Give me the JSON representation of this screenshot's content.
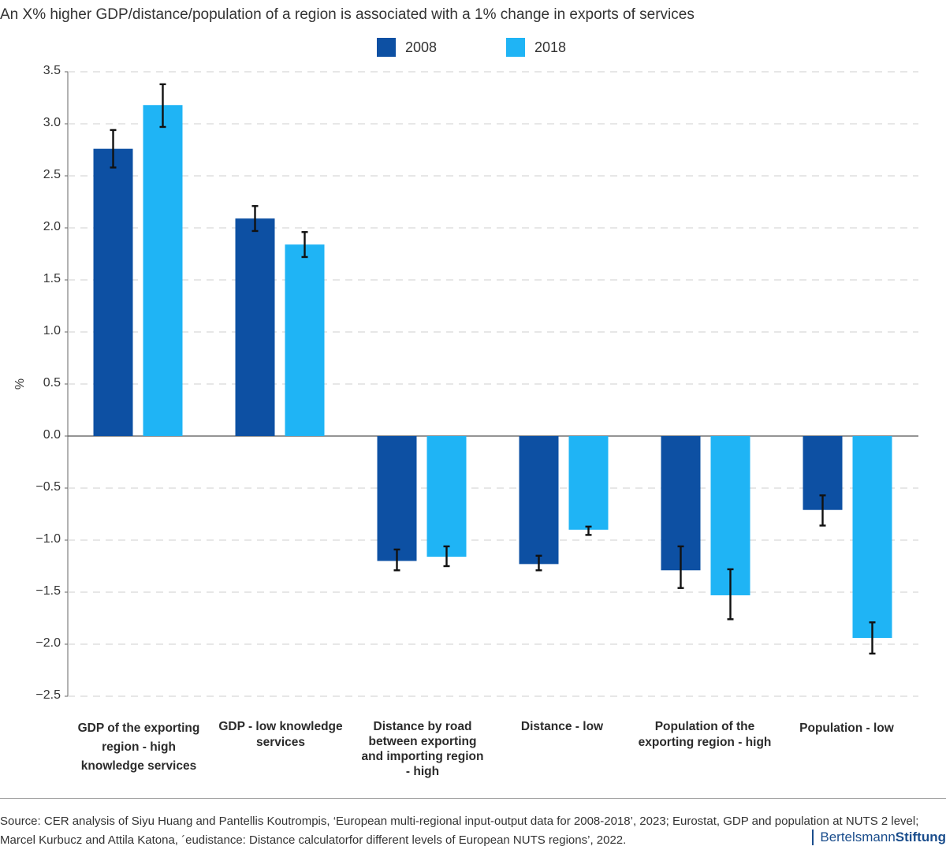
{
  "chart_data": {
    "type": "bar",
    "title": "An X% higher GDP/distance/population of a region is associated with a 1% change in exports of services",
    "ylabel": "%",
    "ylim": [
      -2.5,
      3.5
    ],
    "yticks": [
      3.5,
      3.0,
      2.5,
      2.0,
      1.5,
      1.0,
      0.5,
      0.0,
      -0.5,
      -1.0,
      -1.5,
      -2.0,
      -2.5
    ],
    "ytick_labels": [
      "3.5",
      "3.0",
      "2.5",
      "2.0",
      "1.5",
      "1.0",
      "0.5",
      "0.0",
      "−0.5",
      "−1.0",
      "−1.5",
      "−2.0",
      "−2.5"
    ],
    "grid": "horizontal dashed",
    "legend_position": "top-center",
    "categories": [
      "GDP of the exporting\nregion - high\nknowledge services",
      "GDP - low knowledge\nservices",
      "Distance by road\nbetween exporting\nand importing region\n- high",
      "Distance - low",
      "Population of the\nexporting region - high",
      "Population - low"
    ],
    "series": [
      {
        "name": "2008",
        "color": "#0d50a3",
        "values": [
          2.76,
          2.09,
          -1.2,
          -1.23,
          -1.29,
          -0.71
        ],
        "error_low": [
          2.58,
          1.97,
          -1.29,
          -1.29,
          -1.46,
          -0.86
        ],
        "error_high": [
          2.94,
          2.21,
          -1.09,
          -1.15,
          -1.06,
          -0.57
        ]
      },
      {
        "name": "2018",
        "color": "#1fb4f5",
        "values": [
          3.18,
          1.84,
          -1.16,
          -0.9,
          -1.53,
          -1.94
        ],
        "error_low": [
          2.97,
          1.72,
          -1.25,
          -0.95,
          -1.76,
          -2.09
        ],
        "error_high": [
          3.38,
          1.96,
          -1.06,
          -0.87,
          -1.28,
          -1.79
        ]
      }
    ]
  },
  "footer": {
    "source_line_1": "Source: CER analysis of Siyu Huang and Pantellis Koutrompis, ‘European multi-regional input-output data for 2008-2018’, 2023; Eurostat, GDP and population at NUTS 2 level;",
    "source_line_2": "Marcel Kurbucz and Attila Katona, ´eudistance: Distance calculatorfor different levels of European NUTS regions’, 2022.",
    "brand_regular": "Bertelsmann",
    "brand_bold": "Stiftung"
  }
}
